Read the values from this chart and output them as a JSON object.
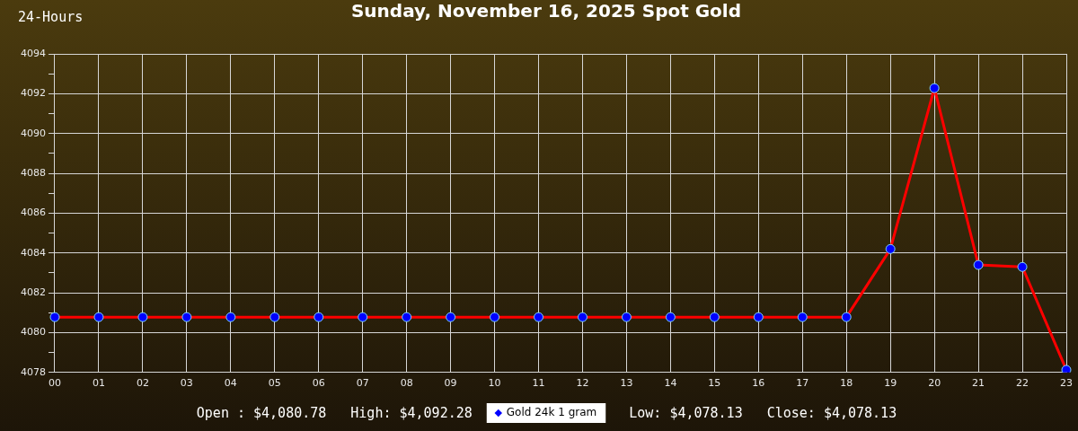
{
  "chart_data": {
    "type": "line",
    "title": "Sunday, November 16, 2025 Spot Gold",
    "annotations": [
      "24-Hours",
      "Open : $4,080.78",
      "High: $4,092.28",
      "Low: $4,078.13",
      "Close: $4,078.13"
    ],
    "categories": [
      "00",
      "01",
      "02",
      "03",
      "04",
      "05",
      "06",
      "07",
      "08",
      "09",
      "10",
      "11",
      "12",
      "13",
      "14",
      "15",
      "16",
      "17",
      "18",
      "19",
      "20",
      "21",
      "22",
      "23"
    ],
    "series": [
      {
        "name": "Gold 24k 1 gram",
        "color": "#ff0000",
        "colors": [
          "#0000ff",
          "#0000ff",
          "#0000ff",
          "#0000ff",
          "#0000ff",
          "#0000ff",
          "#0000ff",
          "#0000ff",
          "#0000ff",
          "#0000ff",
          "#0000ff",
          "#0000ff",
          "#0000ff",
          "#0000ff",
          "#0000ff",
          "#0000ff",
          "#0000ff",
          "#0000ff",
          "#0000ff",
          "#0000ff",
          "#0000ff",
          "#0000ff",
          "#0000ff",
          "#0000ff"
        ],
        "values": [
          4080.78,
          4080.78,
          4080.78,
          4080.78,
          4080.78,
          4080.78,
          4080.78,
          4080.78,
          4080.78,
          4080.78,
          4080.78,
          4080.78,
          4080.78,
          4080.78,
          4080.78,
          4080.78,
          4080.78,
          4080.78,
          4080.78,
          4084.2,
          4092.28,
          4083.4,
          4083.3,
          4078.13
        ]
      }
    ],
    "ylim": [
      4078,
      4094
    ],
    "yticks": [
      4078,
      {
        "value": 4079,
        "label": null
      },
      4080,
      {
        "value": 4081,
        "label": null
      },
      4082,
      {
        "value": 4083,
        "label": null
      },
      4084,
      {
        "value": 4085,
        "label": null
      },
      4086,
      {
        "value": 4087,
        "label": null
      },
      4088,
      {
        "value": 4089,
        "label": null
      },
      4090,
      {
        "value": 4091,
        "label": null
      },
      4092,
      {
        "value": 4093,
        "label": null
      },
      4094
    ],
    "grid": true,
    "legend": "bottom",
    "marker": "circle"
  }
}
